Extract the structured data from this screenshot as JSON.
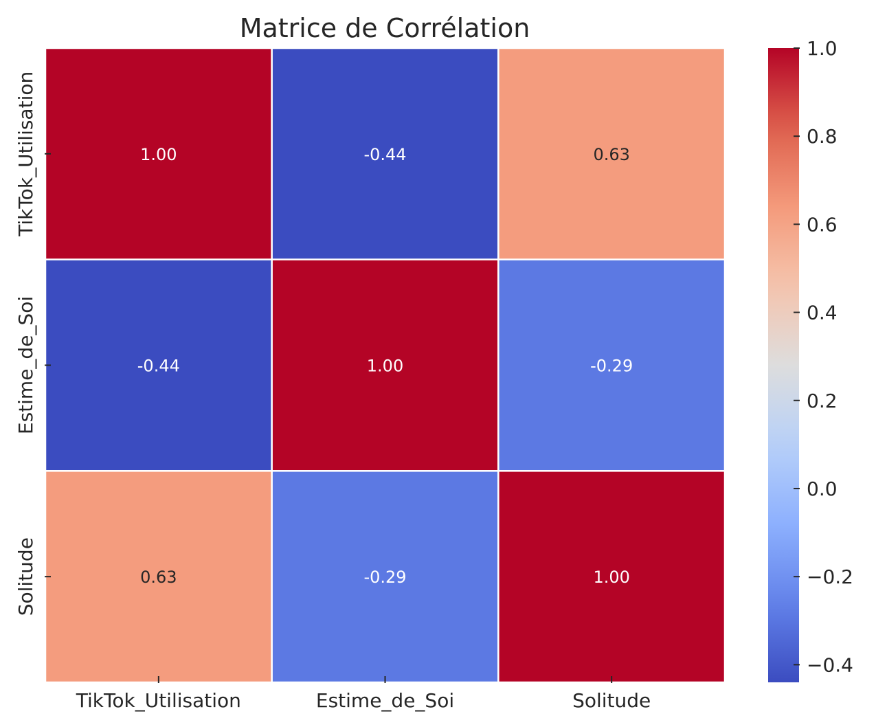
{
  "chart_data": {
    "type": "heatmap",
    "title": "Matrice de Corrélation",
    "xlabel": "",
    "ylabel": "",
    "x_categories": [
      "TikTok_Utilisation",
      "Estime_de_Soi",
      "Solitude"
    ],
    "y_categories": [
      "TikTok_Utilisation",
      "Estime_de_Soi",
      "Solitude"
    ],
    "values": [
      [
        1.0,
        -0.44,
        0.63
      ],
      [
        -0.44,
        1.0,
        -0.29
      ],
      [
        0.63,
        -0.29,
        1.0
      ]
    ],
    "cell_labels": [
      [
        "1.00",
        "-0.44",
        "0.63"
      ],
      [
        "-0.44",
        "1.00",
        "-0.29"
      ],
      [
        "0.63",
        "-0.29",
        "1.00"
      ]
    ],
    "colormap": "coolwarm",
    "colorbar": {
      "range": [
        -0.44,
        1.0
      ],
      "ticks": [
        1.0,
        0.8,
        0.6,
        0.4,
        0.2,
        0.0,
        -0.2,
        -0.4
      ],
      "tick_labels": [
        "1.0",
        "0.8",
        "0.6",
        "0.4",
        "0.2",
        "0.0",
        "−0.2",
        "−0.4"
      ],
      "placement": "right"
    },
    "grid": false,
    "cell_separator_color": "#ffffff"
  }
}
